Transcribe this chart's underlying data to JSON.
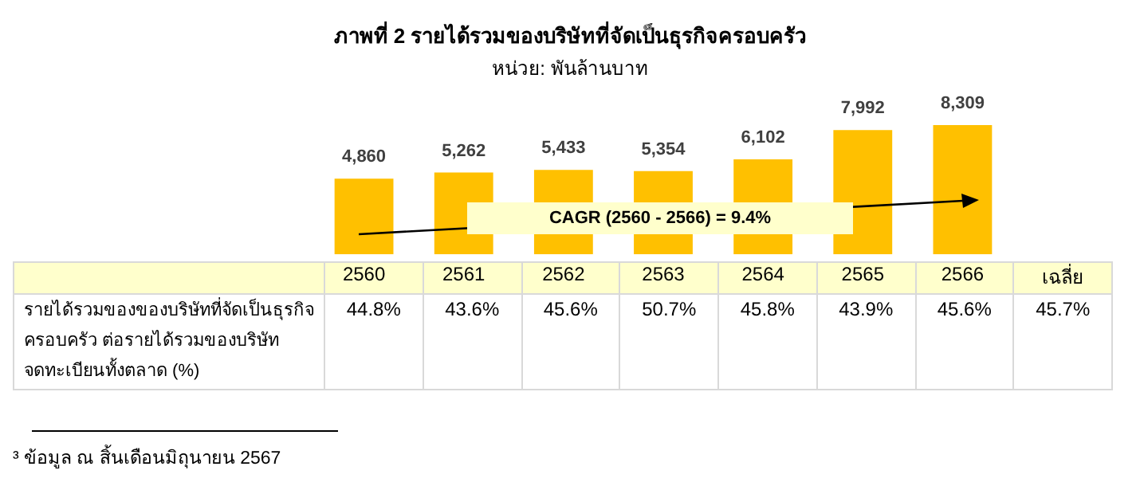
{
  "chart_data": [
    {
      "type": "bar",
      "title": "ภาพที่ 2 รายได้รวมของบริษัทที่จัดเป็นธุรกิจครอบครัว",
      "subtitle": "หน่วย: พันล้านบาท",
      "categories": [
        "2560",
        "2561",
        "2562",
        "2563",
        "2564",
        "2565",
        "2566"
      ],
      "values": [
        4860,
        5262,
        5433,
        5354,
        6102,
        7992,
        8309
      ],
      "value_labels": [
        "4,860",
        "5,262",
        "5,433",
        "5,354",
        "6,102",
        "7,992",
        "8,309"
      ],
      "color": "#ffc000",
      "tick_labels": "x",
      "grid": false,
      "legend": false,
      "annotations": [
        "CAGR (2560 - 2566) = 9.4%",
        "³ ข้อมูล ณ สิ้นเดือนมิถุนายน 2567"
      ]
    },
    {
      "type": "other",
      "ylabel": "รายได้รวมของของบริษัทที่จัดเป็นธุรกิจ\nครอบครัว ต่อรายได้รวมของบริษัท\nจดทะเบียนทั้งตลาด (%)",
      "categories": [
        null,
        null,
        null,
        null,
        null,
        null,
        null,
        "เฉลี่ย"
      ],
      "values": [
        44.8,
        43.6,
        45.6,
        50.7,
        45.8,
        43.9,
        45.6,
        45.7
      ],
      "value_labels": [
        "44.8%",
        "43.6%",
        "45.6%",
        "50.7%",
        "45.8%",
        "43.9%",
        "45.6%",
        "45.7%"
      ]
    }
  ]
}
